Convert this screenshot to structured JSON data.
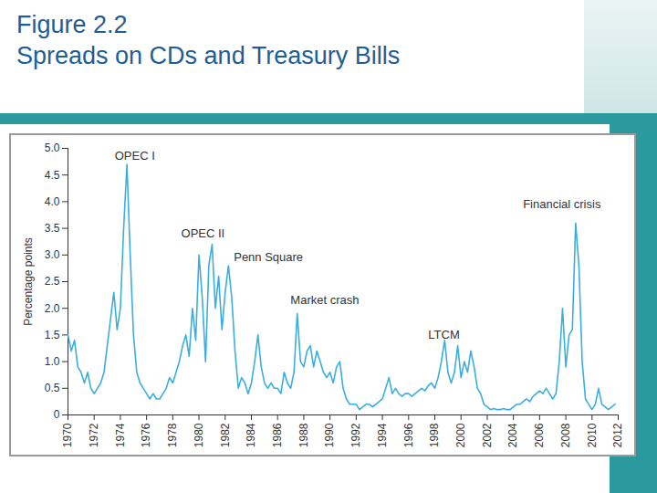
{
  "chart_data": {
    "type": "line",
    "title": "Figure 2.2",
    "subtitle": "Spreads on CDs and Treasury Bills",
    "y_label": "Percentage points",
    "color": "#3aaee0",
    "xlim": [
      1970,
      2012
    ],
    "xticks": [
      1970,
      1972,
      1974,
      1976,
      1978,
      1980,
      1982,
      1984,
      1986,
      1988,
      1990,
      1992,
      1994,
      1996,
      1998,
      2000,
      2002,
      2004,
      2006,
      2008,
      2010,
      2012
    ],
    "ylim": [
      0,
      5
    ],
    "yticks": [
      0,
      0.5,
      {
        "value": 1,
        "label": "1.0"
      },
      1.5,
      {
        "value": 2,
        "label": "2.0"
      },
      2.5,
      {
        "value": 3,
        "label": "3.0"
      },
      3.5,
      {
        "value": 4,
        "label": "4.0"
      },
      4.5,
      {
        "value": 5,
        "label": "5.0"
      }
    ],
    "grid": false,
    "annotations": [
      {
        "text": "OPEC I",
        "x": 1975.1,
        "y": 4.85
      },
      {
        "text": "OPEC II",
        "x": 1980.3,
        "y": 3.4
      },
      {
        "text": "Penn Square",
        "x": 1985.3,
        "y": 2.95
      },
      {
        "text": "Market crash",
        "x": 1989.6,
        "y": 2.15
      },
      {
        "text": "LTCM",
        "x": 1998.7,
        "y": 1.5
      },
      {
        "text": "Financial crisis",
        "x": 2007.7,
        "y": 3.95
      }
    ],
    "x": [
      1970,
      1970.25,
      1970.5,
      1970.75,
      1971,
      1971.25,
      1971.5,
      1971.75,
      1972,
      1972.25,
      1972.5,
      1972.75,
      1973,
      1973.25,
      1973.5,
      1973.75,
      1974,
      1974.25,
      1974.5,
      1974.75,
      1975,
      1975.25,
      1975.5,
      1975.75,
      1976,
      1976.25,
      1976.5,
      1976.75,
      1977,
      1977.25,
      1977.5,
      1977.75,
      1978,
      1978.25,
      1978.5,
      1978.75,
      1979,
      1979.25,
      1979.5,
      1979.75,
      1980,
      1980.25,
      1980.5,
      1980.75,
      1981,
      1981.25,
      1981.5,
      1981.75,
      1982,
      1982.25,
      1982.5,
      1982.75,
      1983,
      1983.25,
      1983.5,
      1983.75,
      1984,
      1984.25,
      1984.5,
      1984.75,
      1985,
      1985.25,
      1985.5,
      1985.75,
      1986,
      1986.25,
      1986.5,
      1986.75,
      1987,
      1987.25,
      1987.5,
      1987.75,
      1988,
      1988.25,
      1988.5,
      1988.75,
      1989,
      1989.25,
      1989.5,
      1989.75,
      1990,
      1990.25,
      1990.5,
      1990.75,
      1991,
      1991.25,
      1991.5,
      1991.75,
      1992,
      1992.25,
      1992.5,
      1992.75,
      1993,
      1993.25,
      1993.5,
      1993.75,
      1994,
      1994.25,
      1994.5,
      1994.75,
      1995,
      1995.25,
      1995.5,
      1995.75,
      1996,
      1996.25,
      1996.5,
      1996.75,
      1997,
      1997.25,
      1997.5,
      1997.75,
      1998,
      1998.25,
      1998.5,
      1998.75,
      1999,
      1999.25,
      1999.5,
      1999.75,
      2000,
      2000.25,
      2000.5,
      2000.75,
      2001,
      2001.25,
      2001.5,
      2001.75,
      2002,
      2002.25,
      2002.5,
      2002.75,
      2003,
      2003.25,
      2003.5,
      2003.75,
      2004,
      2004.25,
      2004.5,
      2004.75,
      2005,
      2005.25,
      2005.5,
      2005.75,
      2006,
      2006.25,
      2006.5,
      2006.75,
      2007,
      2007.25,
      2007.5,
      2007.75,
      2008,
      2008.25,
      2008.5,
      2008.75,
      2009,
      2009.25,
      2009.5,
      2009.75,
      2010,
      2010.25,
      2010.5,
      2010.75,
      2011,
      2011.25,
      2011.5,
      2011.75
    ],
    "values": [
      1.5,
      1.2,
      1.4,
      0.9,
      0.8,
      0.6,
      0.8,
      0.5,
      0.4,
      0.5,
      0.6,
      0.8,
      1.3,
      1.8,
      2.3,
      1.6,
      2.0,
      3.5,
      4.7,
      3.0,
      1.5,
      0.8,
      0.6,
      0.5,
      0.4,
      0.3,
      0.4,
      0.3,
      0.3,
      0.4,
      0.5,
      0.7,
      0.6,
      0.8,
      1.0,
      1.3,
      1.5,
      1.1,
      2.0,
      1.4,
      3.0,
      2.2,
      1.0,
      2.8,
      3.2,
      2.0,
      2.6,
      1.6,
      2.3,
      2.8,
      2.2,
      1.2,
      0.5,
      0.7,
      0.6,
      0.4,
      0.6,
      1.0,
      1.5,
      0.9,
      0.6,
      0.5,
      0.6,
      0.5,
      0.5,
      0.4,
      0.8,
      0.6,
      0.5,
      0.8,
      1.9,
      1.0,
      0.9,
      1.2,
      1.3,
      0.9,
      1.2,
      1.0,
      0.8,
      0.7,
      0.8,
      0.6,
      0.9,
      1.0,
      0.5,
      0.3,
      0.2,
      0.2,
      0.2,
      0.1,
      0.15,
      0.2,
      0.2,
      0.15,
      0.2,
      0.25,
      0.3,
      0.5,
      0.7,
      0.4,
      0.5,
      0.4,
      0.35,
      0.4,
      0.4,
      0.35,
      0.4,
      0.45,
      0.5,
      0.45,
      0.55,
      0.6,
      0.5,
      0.7,
      1.0,
      1.4,
      0.8,
      0.6,
      0.8,
      1.3,
      0.7,
      1.0,
      0.8,
      1.2,
      0.9,
      0.5,
      0.4,
      0.2,
      0.15,
      0.1,
      0.12,
      0.1,
      0.1,
      0.12,
      0.1,
      0.1,
      0.15,
      0.2,
      0.2,
      0.25,
      0.3,
      0.25,
      0.35,
      0.4,
      0.45,
      0.4,
      0.5,
      0.4,
      0.3,
      0.4,
      1.0,
      2.0,
      0.9,
      1.5,
      1.6,
      3.6,
      2.8,
      1.0,
      0.3,
      0.2,
      0.1,
      0.2,
      0.5,
      0.2,
      0.15,
      0.1,
      0.15,
      0.2
    ]
  }
}
